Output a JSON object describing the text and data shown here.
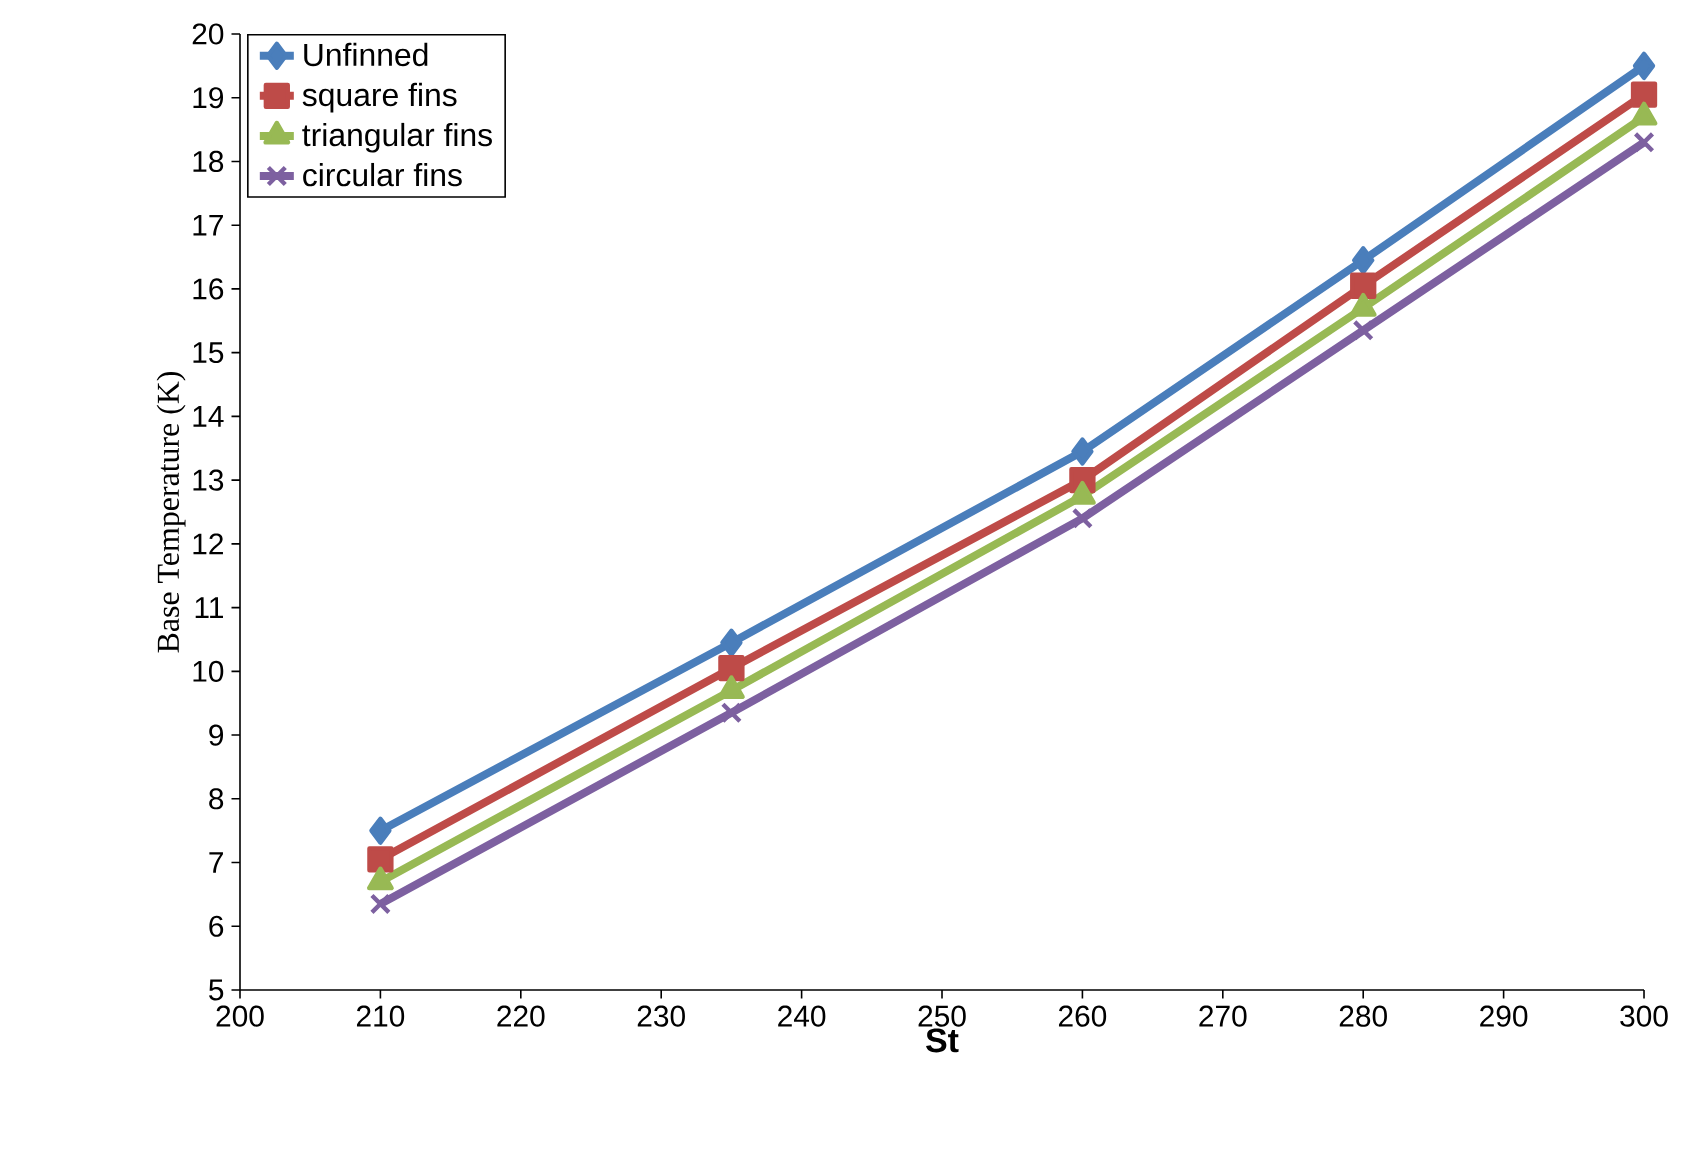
{
  "chart_data": {
    "type": "line",
    "xlabel": "St",
    "ylabel": "Base Temperature (K)",
    "x": [
      210,
      235,
      260,
      280,
      300
    ],
    "series": [
      {
        "name": "Unfinned",
        "color": "#4a7ebb",
        "marker": "diamond",
        "values": [
          7.5,
          10.45,
          13.45,
          16.45,
          19.5
        ]
      },
      {
        "name": "square fins",
        "color": "#be4b48",
        "marker": "square",
        "values": [
          7.05,
          10.05,
          13.0,
          16.05,
          19.05
        ]
      },
      {
        "name": "triangular fins",
        "color": "#98b954",
        "marker": "triangle",
        "values": [
          6.7,
          9.7,
          12.75,
          15.7,
          18.7
        ]
      },
      {
        "name": "circular fins",
        "color": "#7d60a0",
        "marker": "cross",
        "values": [
          6.35,
          9.35,
          12.4,
          15.35,
          18.3
        ]
      }
    ],
    "xlim": [
      200,
      300
    ],
    "xticks": [
      200,
      210,
      220,
      230,
      240,
      250,
      260,
      270,
      280,
      290,
      300
    ],
    "ylim": [
      5,
      20
    ],
    "yticks": [
      5,
      6,
      7,
      8,
      9,
      10,
      11,
      12,
      13,
      14,
      15,
      16,
      17,
      18,
      19,
      20
    ],
    "grid": false,
    "legend": "top left",
    "line_style": "solid"
  }
}
